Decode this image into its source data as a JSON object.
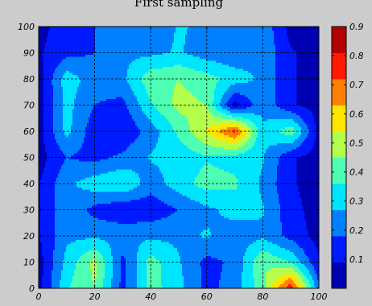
{
  "chart_data": {
    "type": "contour",
    "title": "First sampling",
    "xlabel": "",
    "ylabel": "",
    "xlim": [
      0,
      100
    ],
    "ylim": [
      0,
      100
    ],
    "grid": true,
    "x_ticks": [
      0,
      20,
      40,
      60,
      80,
      100
    ],
    "y_ticks": [
      0,
      10,
      20,
      30,
      40,
      50,
      60,
      70,
      80,
      90,
      100
    ],
    "colorbar": {
      "position": "right",
      "range": [
        0,
        0.9
      ],
      "ticks": [
        0.1,
        0.2,
        0.3,
        0.4,
        0.5,
        0.6,
        0.7,
        0.8,
        0.9
      ],
      "levels": 10
    },
    "x": [
      0,
      10,
      20,
      30,
      40,
      50,
      60,
      70,
      80,
      90,
      100
    ],
    "y": [
      0,
      10,
      20,
      30,
      40,
      50,
      60,
      70,
      80,
      90,
      100
    ],
    "z": [
      [
        0.05,
        0.35,
        0.45,
        0.15,
        0.4,
        0.3,
        0.15,
        0.22,
        0.42,
        0.8,
        0.2
      ],
      [
        0.05,
        0.3,
        0.48,
        0.15,
        0.4,
        0.28,
        0.15,
        0.2,
        0.45,
        0.35,
        0.1
      ],
      [
        0.08,
        0.25,
        0.25,
        0.25,
        0.25,
        0.25,
        0.28,
        0.22,
        0.25,
        0.15,
        0.05
      ],
      [
        0.08,
        0.25,
        0.15,
        0.1,
        0.12,
        0.18,
        0.25,
        0.3,
        0.28,
        0.12,
        0.05
      ],
      [
        0.08,
        0.25,
        0.32,
        0.36,
        0.22,
        0.32,
        0.4,
        0.38,
        0.25,
        0.1,
        0.05
      ],
      [
        0.05,
        0.18,
        0.15,
        0.2,
        0.28,
        0.3,
        0.35,
        0.32,
        0.28,
        0.1,
        0.05
      ],
      [
        0.05,
        0.3,
        0.12,
        0.1,
        0.22,
        0.38,
        0.55,
        0.75,
        0.28,
        0.42,
        0.05
      ],
      [
        0.05,
        0.3,
        0.18,
        0.15,
        0.35,
        0.48,
        0.45,
        0.05,
        0.25,
        0.1,
        0.05
      ],
      [
        0.05,
        0.32,
        0.22,
        0.25,
        0.42,
        0.45,
        0.4,
        0.32,
        0.25,
        0.1,
        0.05
      ],
      [
        0.08,
        0.15,
        0.18,
        0.25,
        0.25,
        0.28,
        0.22,
        0.2,
        0.25,
        0.1,
        0.05
      ],
      [
        0.05,
        0.15,
        0.18,
        0.25,
        0.2,
        0.28,
        0.25,
        0.25,
        0.25,
        0.05,
        0.05
      ]
    ]
  },
  "colors": {
    "background": "#cccccc",
    "plot_border": "#000000",
    "grid": "#000000"
  }
}
